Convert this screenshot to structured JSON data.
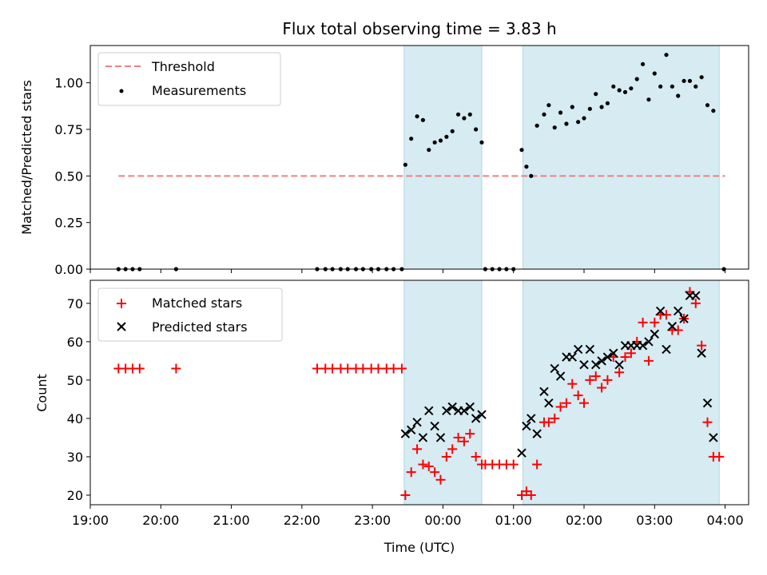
{
  "chart_data": [
    {
      "type": "scatter",
      "title": "Flux total observing time = 3.83 h",
      "ylabel": "Matched/Predicted stars",
      "xlabel": "",
      "xlim": [
        "19:00",
        "04:20"
      ],
      "ylim": [
        0,
        1.2
      ],
      "yticks": [
        "0.00",
        "0.25",
        "0.50",
        "0.75",
        "1.00"
      ],
      "legend_position": "top-left",
      "shaded_intervals": [
        [
          "23:27",
          "00:33"
        ],
        [
          "01:08",
          "03:55"
        ]
      ],
      "colors": {
        "threshold": "#f08080",
        "measurements": "#000000",
        "shade": "#add8e6"
      },
      "threshold": {
        "name": "Threshold",
        "y": 0.5,
        "x": [
          "19:24",
          "04:00"
        ]
      },
      "series": [
        {
          "name": "Measurements",
          "points": [
            [
              "19:24",
              0.0
            ],
            [
              "19:30",
              0.0
            ],
            [
              "19:36",
              0.0
            ],
            [
              "19:42",
              0.0
            ],
            [
              "20:13",
              0.0
            ],
            [
              "22:13",
              0.0
            ],
            [
              "22:20",
              0.0
            ],
            [
              "22:26",
              0.0
            ],
            [
              "22:33",
              0.0
            ],
            [
              "22:39",
              0.0
            ],
            [
              "22:46",
              0.0
            ],
            [
              "22:52",
              0.0
            ],
            [
              "22:59",
              0.0
            ],
            [
              "23:05",
              0.0
            ],
            [
              "23:12",
              0.0
            ],
            [
              "23:18",
              0.0
            ],
            [
              "23:25",
              0.0
            ],
            [
              "23:28",
              0.56
            ],
            [
              "23:33",
              0.7
            ],
            [
              "23:38",
              0.82
            ],
            [
              "23:43",
              0.8
            ],
            [
              "23:48",
              0.64
            ],
            [
              "23:53",
              0.68
            ],
            [
              "23:58",
              0.69
            ],
            [
              "00:03",
              0.71
            ],
            [
              "00:08",
              0.74
            ],
            [
              "00:13",
              0.83
            ],
            [
              "00:18",
              0.81
            ],
            [
              "00:23",
              0.83
            ],
            [
              "00:28",
              0.75
            ],
            [
              "00:33",
              0.68
            ],
            [
              "00:36",
              0.0
            ],
            [
              "00:42",
              0.0
            ],
            [
              "00:48",
              0.0
            ],
            [
              "00:54",
              0.0
            ],
            [
              "01:00",
              0.0
            ],
            [
              "01:07",
              0.64
            ],
            [
              "01:11",
              0.55
            ],
            [
              "01:15",
              0.5
            ],
            [
              "01:20",
              0.77
            ],
            [
              "01:26",
              0.83
            ],
            [
              "01:30",
              0.88
            ],
            [
              "01:35",
              0.76
            ],
            [
              "01:40",
              0.84
            ],
            [
              "01:45",
              0.78
            ],
            [
              "01:50",
              0.87
            ],
            [
              "01:55",
              0.79
            ],
            [
              "02:00",
              0.81
            ],
            [
              "02:05",
              0.86
            ],
            [
              "02:10",
              0.94
            ],
            [
              "02:15",
              0.87
            ],
            [
              "02:20",
              0.89
            ],
            [
              "02:25",
              0.98
            ],
            [
              "02:30",
              0.96
            ],
            [
              "02:35",
              0.95
            ],
            [
              "02:40",
              0.97
            ],
            [
              "02:45",
              1.02
            ],
            [
              "02:50",
              1.1
            ],
            [
              "02:55",
              0.91
            ],
            [
              "03:00",
              1.05
            ],
            [
              "03:05",
              0.98
            ],
            [
              "03:10",
              1.15
            ],
            [
              "03:15",
              0.98
            ],
            [
              "03:20",
              0.93
            ],
            [
              "03:25",
              1.01
            ],
            [
              "03:30",
              1.01
            ],
            [
              "03:35",
              0.98
            ],
            [
              "03:40",
              1.03
            ],
            [
              "03:45",
              0.88
            ],
            [
              "03:50",
              0.85
            ],
            [
              "03:59",
              0.0
            ]
          ]
        }
      ]
    },
    {
      "type": "scatter",
      "title": "",
      "ylabel": "Count",
      "xlabel": "Time (UTC)",
      "xlim": [
        "19:00",
        "04:20"
      ],
      "ylim": [
        17.5,
        76
      ],
      "yticks": [
        "20",
        "30",
        "40",
        "50",
        "60",
        "70"
      ],
      "xticks": [
        "19:00",
        "20:00",
        "21:00",
        "22:00",
        "23:00",
        "00:00",
        "01:00",
        "02:00",
        "03:00",
        "04:00"
      ],
      "legend_position": "top-left",
      "shaded_intervals": [
        [
          "23:27",
          "00:33"
        ],
        [
          "01:08",
          "03:55"
        ]
      ],
      "colors": {
        "matched": "#ff0000",
        "predicted": "#000000",
        "shade": "#add8e6"
      },
      "series": [
        {
          "name": "Matched stars",
          "points": [
            [
              "19:24",
              53
            ],
            [
              "19:30",
              53
            ],
            [
              "19:36",
              53
            ],
            [
              "19:42",
              53
            ],
            [
              "20:13",
              53
            ],
            [
              "22:13",
              53
            ],
            [
              "22:20",
              53
            ],
            [
              "22:26",
              53
            ],
            [
              "22:33",
              53
            ],
            [
              "22:39",
              53
            ],
            [
              "22:46",
              53
            ],
            [
              "22:52",
              53
            ],
            [
              "22:59",
              53
            ],
            [
              "23:05",
              53
            ],
            [
              "23:12",
              53
            ],
            [
              "23:18",
              53
            ],
            [
              "23:25",
              53
            ],
            [
              "23:28",
              20
            ],
            [
              "23:33",
              26
            ],
            [
              "23:38",
              32
            ],
            [
              "23:43",
              28
            ],
            [
              "23:48",
              27.5
            ],
            [
              "23:53",
              26
            ],
            [
              "23:58",
              24
            ],
            [
              "00:03",
              30
            ],
            [
              "00:08",
              32
            ],
            [
              "00:13",
              35
            ],
            [
              "00:18",
              34
            ],
            [
              "00:23",
              36
            ],
            [
              "00:28",
              30
            ],
            [
              "00:33",
              28
            ],
            [
              "00:36",
              28
            ],
            [
              "00:42",
              28
            ],
            [
              "00:48",
              28
            ],
            [
              "00:54",
              28
            ],
            [
              "01:00",
              28
            ],
            [
              "01:07",
              20
            ],
            [
              "01:11",
              21
            ],
            [
              "01:15",
              20
            ],
            [
              "01:20",
              28
            ],
            [
              "01:26",
              39
            ],
            [
              "01:30",
              39
            ],
            [
              "01:35",
              40
            ],
            [
              "01:40",
              43
            ],
            [
              "01:45",
              44
            ],
            [
              "01:50",
              49
            ],
            [
              "01:55",
              46
            ],
            [
              "02:00",
              44
            ],
            [
              "02:05",
              50
            ],
            [
              "02:10",
              51
            ],
            [
              "02:15",
              48
            ],
            [
              "02:20",
              50
            ],
            [
              "02:25",
              56
            ],
            [
              "02:30",
              52
            ],
            [
              "02:35",
              56
            ],
            [
              "02:40",
              57
            ],
            [
              "02:45",
              60
            ],
            [
              "02:50",
              65
            ],
            [
              "02:55",
              55
            ],
            [
              "03:00",
              65
            ],
            [
              "03:05",
              67
            ],
            [
              "03:10",
              67
            ],
            [
              "03:15",
              63
            ],
            [
              "03:20",
              63
            ],
            [
              "03:25",
              66
            ],
            [
              "03:30",
              73
            ],
            [
              "03:35",
              70
            ],
            [
              "03:40",
              59
            ],
            [
              "03:45",
              39
            ],
            [
              "03:50",
              30
            ],
            [
              "03:55",
              30
            ]
          ]
        },
        {
          "name": "Predicted stars",
          "points": [
            [
              "23:28",
              36
            ],
            [
              "23:33",
              37
            ],
            [
              "23:38",
              39
            ],
            [
              "23:43",
              35
            ],
            [
              "23:48",
              42
            ],
            [
              "23:53",
              38
            ],
            [
              "23:58",
              35
            ],
            [
              "00:03",
              42
            ],
            [
              "00:08",
              43
            ],
            [
              "00:13",
              42
            ],
            [
              "00:18",
              42
            ],
            [
              "00:23",
              43
            ],
            [
              "00:28",
              40
            ],
            [
              "00:33",
              41
            ],
            [
              "01:07",
              31
            ],
            [
              "01:11",
              38
            ],
            [
              "01:15",
              40
            ],
            [
              "01:20",
              36
            ],
            [
              "01:26",
              47
            ],
            [
              "01:30",
              44
            ],
            [
              "01:35",
              53
            ],
            [
              "01:40",
              51
            ],
            [
              "01:45",
              56
            ],
            [
              "01:50",
              56
            ],
            [
              "01:55",
              58
            ],
            [
              "02:00",
              54
            ],
            [
              "02:05",
              58
            ],
            [
              "02:10",
              54
            ],
            [
              "02:15",
              55
            ],
            [
              "02:20",
              56
            ],
            [
              "02:25",
              57
            ],
            [
              "02:30",
              54
            ],
            [
              "02:35",
              59
            ],
            [
              "02:40",
              59
            ],
            [
              "02:45",
              59
            ],
            [
              "02:50",
              59
            ],
            [
              "02:55",
              60
            ],
            [
              "03:00",
              62
            ],
            [
              "03:05",
              68
            ],
            [
              "03:10",
              58
            ],
            [
              "03:15",
              64
            ],
            [
              "03:20",
              68
            ],
            [
              "03:25",
              66
            ],
            [
              "03:30",
              72
            ],
            [
              "03:35",
              72
            ],
            [
              "03:40",
              57
            ],
            [
              "03:45",
              44
            ],
            [
              "03:50",
              35
            ]
          ]
        }
      ]
    }
  ]
}
